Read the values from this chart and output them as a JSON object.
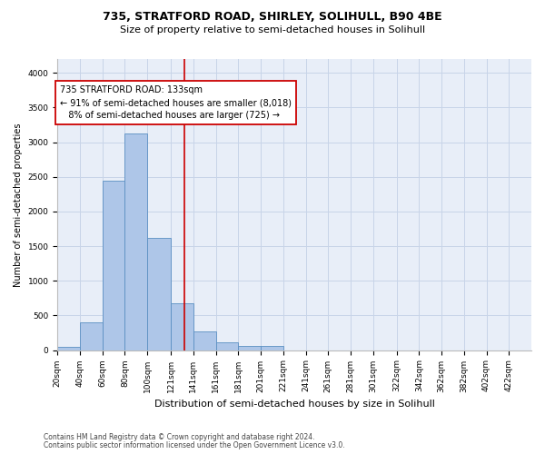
{
  "title1": "735, STRATFORD ROAD, SHIRLEY, SOLIHULL, B90 4BE",
  "title2": "Size of property relative to semi-detached houses in Solihull",
  "xlabel": "Distribution of semi-detached houses by size in Solihull",
  "ylabel": "Number of semi-detached properties",
  "footnote1": "Contains HM Land Registry data © Crown copyright and database right 2024.",
  "footnote2": "Contains public sector information licensed under the Open Government Licence v3.0.",
  "bar_left_edges": [
    20,
    40,
    60,
    80,
    100,
    121,
    141,
    161,
    181,
    201,
    221,
    241,
    261,
    281,
    301,
    322,
    342,
    362,
    382,
    402
  ],
  "bar_widths": [
    20,
    20,
    20,
    20,
    21,
    20,
    20,
    20,
    20,
    20,
    20,
    20,
    20,
    20,
    21,
    20,
    20,
    20,
    20,
    20
  ],
  "bar_heights": [
    50,
    400,
    2440,
    3130,
    1620,
    680,
    265,
    115,
    65,
    55,
    0,
    0,
    0,
    0,
    0,
    0,
    0,
    0,
    0,
    0
  ],
  "bar_color": "#aec6e8",
  "bar_edgecolor": "#5a8fc2",
  "vline_color": "#cc0000",
  "vline_x": 133,
  "annotation_line1": "735 STRATFORD ROAD: 133sqm",
  "annotation_line2": "← 91% of semi-detached houses are smaller (8,018)",
  "annotation_line3": "   8% of semi-detached houses are larger (725) →",
  "annotation_box_color": "#ffffff",
  "annotation_box_edgecolor": "#cc0000",
  "tick_labels": [
    "20sqm",
    "40sqm",
    "60sqm",
    "80sqm",
    "100sqm",
    "121sqm",
    "141sqm",
    "161sqm",
    "181sqm",
    "201sqm",
    "221sqm",
    "241sqm",
    "261sqm",
    "281sqm",
    "301sqm",
    "322sqm",
    "342sqm",
    "362sqm",
    "382sqm",
    "402sqm",
    "422sqm"
  ],
  "ylim": [
    0,
    4200
  ],
  "yticks": [
    0,
    500,
    1000,
    1500,
    2000,
    2500,
    3000,
    3500,
    4000
  ],
  "grid_color": "#c8d4e8",
  "background_color": "#e8eef8",
  "title1_fontsize": 9,
  "title2_fontsize": 8,
  "annotation_fontsize": 7,
  "ylabel_fontsize": 7,
  "xlabel_fontsize": 8,
  "tick_fontsize": 6.5,
  "footnote_fontsize": 5.5
}
